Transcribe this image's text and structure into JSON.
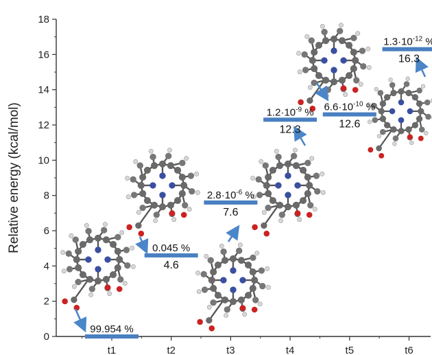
{
  "chart_data": {
    "type": "bar",
    "title": "",
    "ylabel": "Relative energy (kcal/mol)",
    "xlabel": "",
    "ylim": [
      0,
      18
    ],
    "yticks": [
      0,
      2,
      4,
      6,
      8,
      10,
      12,
      14,
      16,
      18
    ],
    "categories": [
      "t1",
      "t2",
      "t3",
      "t4",
      "t5",
      "t6"
    ],
    "values": [
      0,
      4.6,
      7.6,
      12.3,
      12.6,
      16.3
    ],
    "value_labels": [
      "",
      "4.6",
      "7.6",
      "12.3",
      "12.6",
      "16.3"
    ],
    "population_labels": [
      {
        "mantissa": "99.954 %",
        "exp": ""
      },
      {
        "mantissa": "0.045 %",
        "exp": ""
      },
      {
        "mantissa": "2.8·10",
        "exp": "-6",
        "unit": " %"
      },
      {
        "mantissa": "1.2·10",
        "exp": "-9",
        "unit": " %"
      },
      {
        "mantissa": "6.6·10",
        "exp": "-10",
        "unit": " %"
      },
      {
        "mantissa": "1.3·10",
        "exp": "-12",
        "unit": " %"
      }
    ],
    "grid": false,
    "colors": {
      "level": "#4a7fc1",
      "arrow": "#4a86c8",
      "axis": "#333333"
    }
  }
}
